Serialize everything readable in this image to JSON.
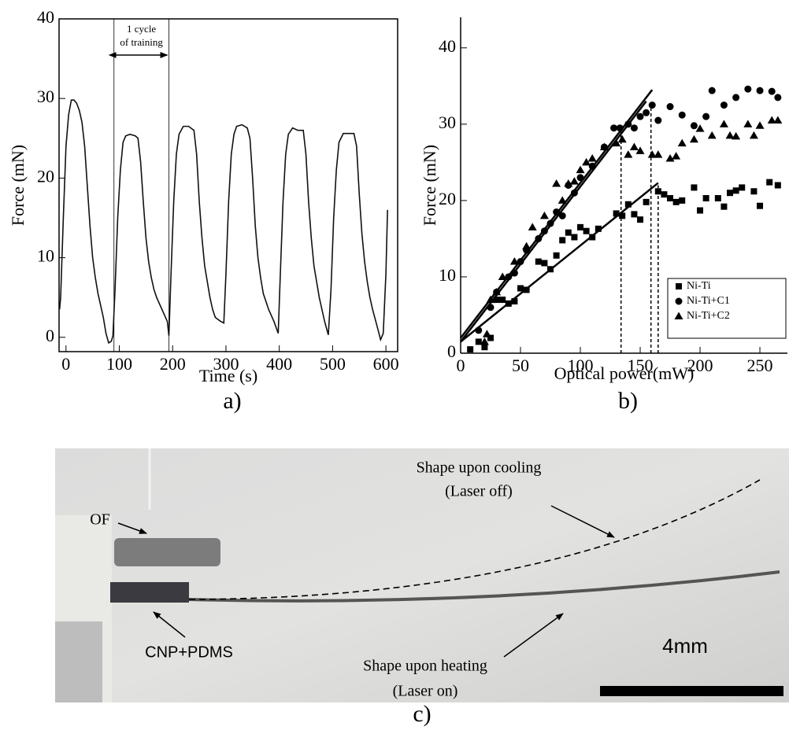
{
  "chart_data": [
    {
      "type": "line",
      "x_label": "Time (s)",
      "y_label": "Force (mN)",
      "panel_label": "a)",
      "color": "#111111",
      "frame": true,
      "xlim": [
        -13,
        622
      ],
      "ylim": [
        -1.8,
        40
      ],
      "xticks": [
        0,
        100,
        200,
        300,
        400,
        500,
        600
      ],
      "yticks": [
        0,
        10,
        20,
        30,
        40
      ],
      "annotation": {
        "text": [
          "1 cycle",
          "of training"
        ],
        "x": [
          90,
          193
        ]
      },
      "x": [
        -12,
        -10,
        -5,
        0,
        5,
        10,
        15,
        20,
        25,
        30,
        35,
        40,
        45,
        50,
        55,
        60,
        65,
        70,
        75,
        80,
        85,
        88,
        92,
        97,
        102,
        107,
        112,
        120,
        130,
        135,
        140,
        145,
        150,
        155,
        160,
        165,
        170,
        180,
        190,
        193,
        197,
        202,
        207,
        212,
        220,
        230,
        240,
        245,
        250,
        255,
        260,
        265,
        270,
        275,
        280,
        290,
        296,
        300,
        305,
        310,
        315,
        320,
        330,
        340,
        345,
        350,
        355,
        360,
        365,
        370,
        380,
        390,
        398,
        402,
        407,
        412,
        417,
        425,
        435,
        445,
        450,
        455,
        460,
        465,
        470,
        475,
        485,
        492,
        497,
        502,
        507,
        512,
        520,
        530,
        540,
        545,
        550,
        555,
        560,
        565,
        570,
        575,
        585,
        590,
        595,
        600,
        603
      ],
      "values": [
        3.5,
        5,
        15,
        24,
        28,
        29.8,
        29.8,
        29.4,
        28.5,
        27,
        24,
        19,
        14,
        10,
        7.5,
        5.5,
        4,
        2.5,
        0.5,
        -0.7,
        -0.5,
        0.2,
        6,
        15,
        21,
        24.5,
        25.3,
        25.5,
        25.3,
        25,
        22,
        17,
        12.5,
        9.5,
        7.5,
        6,
        5,
        3.5,
        2,
        0.2,
        8,
        17,
        23,
        25.5,
        26.5,
        26.5,
        26,
        23,
        17,
        12.5,
        9,
        7,
        5,
        3.5,
        2.5,
        2,
        1.8,
        8,
        17,
        23,
        25.5,
        26.5,
        26.7,
        26.3,
        25,
        20,
        14,
        10,
        7.5,
        5.5,
        3.5,
        2,
        0.5,
        8,
        17,
        23,
        25.5,
        26.3,
        26,
        26,
        23,
        17,
        12.5,
        9,
        7,
        5,
        2,
        0.3,
        6,
        15,
        21,
        24.5,
        25.6,
        25.6,
        25.6,
        24,
        18,
        13,
        9.5,
        7,
        5,
        3.5,
        1,
        -0.3,
        0.5,
        8,
        16
      ]
    },
    {
      "type": "scatter",
      "x_label": "Optical power(mW)",
      "y_label": "Force (mN)",
      "panel_label": "b)",
      "frame": false,
      "legend": "lower right",
      "xlim": [
        0,
        273
      ],
      "ylim": [
        0,
        44
      ],
      "xticks": [
        0,
        50,
        100,
        150,
        200,
        250
      ],
      "yticks": [
        0,
        10,
        20,
        30,
        40
      ],
      "series": [
        {
          "name": "Ni-Ti",
          "color": "#000000",
          "marker": "square",
          "x": [
            8,
            15,
            20,
            25,
            30,
            35,
            40,
            45,
            50,
            55,
            65,
            70,
            75,
            80,
            85,
            90,
            95,
            100,
            105,
            110,
            115,
            130,
            135,
            140,
            145,
            150,
            155,
            165,
            170,
            175,
            180,
            185,
            195,
            200,
            205,
            215,
            220,
            225,
            230,
            235,
            245,
            250,
            258,
            265
          ],
          "values": [
            0.5,
            1.5,
            0.8,
            2,
            7,
            7,
            6.5,
            6.8,
            8.5,
            8.3,
            12,
            11.8,
            11,
            12.8,
            14.8,
            15.8,
            15.2,
            16.5,
            16,
            15.2,
            16.3,
            18.3,
            18,
            19.5,
            18.2,
            17.5,
            19.8,
            21.2,
            20.8,
            20.3,
            19.8,
            20,
            21.7,
            18.7,
            20.3,
            20.3,
            19.2,
            21,
            21.3,
            21.7,
            21.2,
            19.3,
            22.4,
            22
          ]
        },
        {
          "name": "Ni-Ti+C1",
          "color": "#000000",
          "marker": "circle",
          "x": [
            15,
            25,
            30,
            40,
            45,
            50,
            55,
            65,
            70,
            75,
            80,
            85,
            90,
            95,
            100,
            110,
            120,
            128,
            133,
            140,
            145,
            150,
            155,
            160,
            165,
            175,
            185,
            195,
            205,
            210,
            220,
            230,
            240,
            250,
            260,
            265
          ],
          "values": [
            3,
            6,
            8,
            10,
            10.5,
            12,
            13.5,
            15,
            16,
            17,
            18.5,
            18,
            22,
            21,
            23,
            24.5,
            27,
            29.5,
            29.5,
            30,
            29.5,
            31,
            31.5,
            32.5,
            30.5,
            32.3,
            31.2,
            29.8,
            31,
            34.4,
            32.5,
            33.5,
            34.6,
            34.4,
            34.3,
            33.5
          ]
        },
        {
          "name": "Ni-Ti+C2",
          "color": "#000000",
          "marker": "triangle",
          "x": [
            20,
            22,
            25,
            30,
            35,
            45,
            55,
            60,
            70,
            80,
            85,
            90,
            95,
            100,
            105,
            110,
            120,
            130,
            135,
            140,
            145,
            150,
            160,
            165,
            175,
            180,
            185,
            195,
            200,
            210,
            220,
            225,
            230,
            240,
            245,
            250,
            260,
            265
          ],
          "values": [
            1.5,
            2.5,
            7,
            8,
            10,
            12,
            14,
            16.5,
            18,
            22.2,
            20,
            22.2,
            22.5,
            24,
            25,
            25.5,
            27,
            27.5,
            28,
            26,
            27,
            26.5,
            26,
            26,
            25.5,
            25.8,
            27.5,
            28,
            29.4,
            28.5,
            30,
            28.5,
            28.4,
            30,
            28.5,
            29.8,
            30.5,
            30.5
          ]
        }
      ],
      "fit_lines": [
        {
          "x": [
            0,
            165
          ],
          "y": [
            1.5,
            22.3
          ]
        },
        {
          "x": [
            0,
            160
          ],
          "y": [
            2,
            34.5
          ]
        },
        {
          "x": [
            0,
            155
          ],
          "y": [
            1.5,
            33
          ]
        }
      ],
      "thresholds": [
        {
          "x": 134,
          "y": 29.5
        },
        {
          "x": 159,
          "y": 32.5
        },
        {
          "x": 165,
          "y": 22
        }
      ]
    }
  ],
  "photo": {
    "panel_label": "c)",
    "labels": {
      "fiber": "OF",
      "cooling": [
        "Shape upon cooling",
        "(Laser off)"
      ],
      "coating": "CNP+PDMS",
      "heating": [
        "Shape upon heating",
        "(Laser on)"
      ],
      "scale": "4mm"
    }
  }
}
